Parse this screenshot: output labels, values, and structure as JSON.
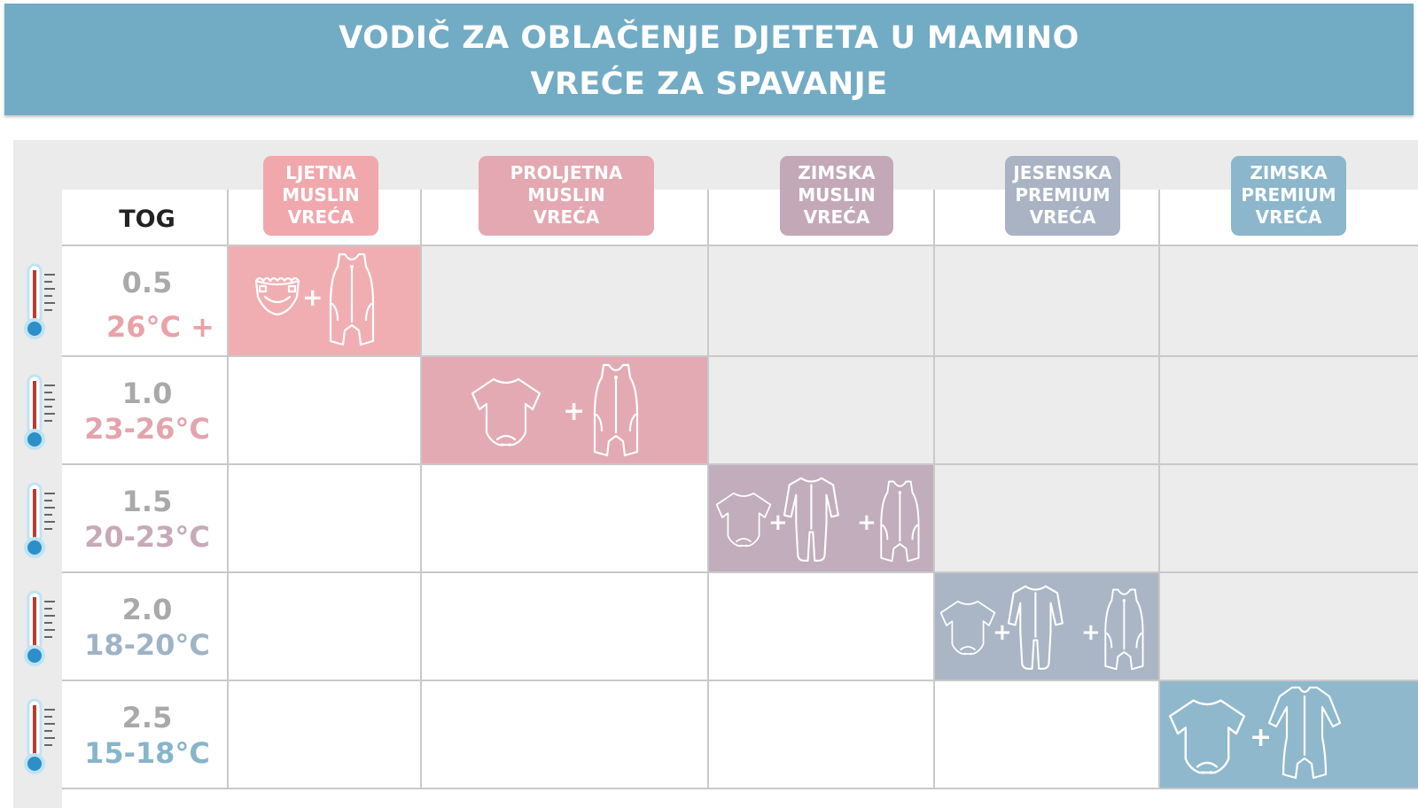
{
  "title": {
    "line1": "VODIČ ZA OBLAČENJE DJETETA U MAMINO",
    "line2": "VREĆE ZA SPAVANJE"
  },
  "table": {
    "tog_header": "TOG",
    "columns": [
      {
        "label": "LJETNA\nMUSLIN\nVREĆA",
        "color": "#f0a8ad"
      },
      {
        "label": "PROLJETNA\nMUSLIN\nVREĆA",
        "color": "#e3a8b1"
      },
      {
        "label": "ZIMSKA\nMUSLIN\nVREĆA",
        "color": "#c3a9b8"
      },
      {
        "label": "JESENSKA\nPREMIUM\nVREĆA",
        "color": "#a9b3c4"
      },
      {
        "label": "ZIMSKA\nPREMIUM\nVREĆA",
        "color": "#8bb6cb"
      }
    ],
    "rows": [
      {
        "tog": "0.5",
        "temp": "26°C +",
        "temp_color": "#eaa2a7",
        "outfit": [
          "diaper-icon",
          "sleeveless-sleepsuit-icon"
        ],
        "cell_color": "#f1aeb2"
      },
      {
        "tog": "1.0",
        "temp": "23-26°C",
        "temp_color": "#e4a4ad",
        "outfit": [
          "bodysuit-icon",
          "sleeveless-sleepsuit-icon"
        ],
        "cell_color": "#e4aab3"
      },
      {
        "tog": "1.5",
        "temp": "20-23°C",
        "temp_color": "#c7a9b8",
        "outfit": [
          "bodysuit-icon",
          "footed-onesie-icon",
          "sleeveless-sleepsuit-icon"
        ],
        "cell_color": "#c1adbb"
      },
      {
        "tog": "2.0",
        "temp": "18-20°C",
        "temp_color": "#9fb3c6",
        "outfit": [
          "bodysuit-icon",
          "footed-onesie-icon",
          "sleeveless-sleepsuit-icon"
        ],
        "cell_color": "#aab6c6"
      },
      {
        "tog": "2.5",
        "temp": "15-18°C",
        "temp_color": "#87b5cb",
        "outfit": [
          "bodysuit-icon",
          "long-sleeve-sleepsuit-icon"
        ],
        "cell_color": "#8fb8cd"
      }
    ],
    "thermometer_colors": {
      "mercury": "#c0392b",
      "bulb": "#2c8fc9",
      "glow": "#bfe3f5"
    }
  }
}
